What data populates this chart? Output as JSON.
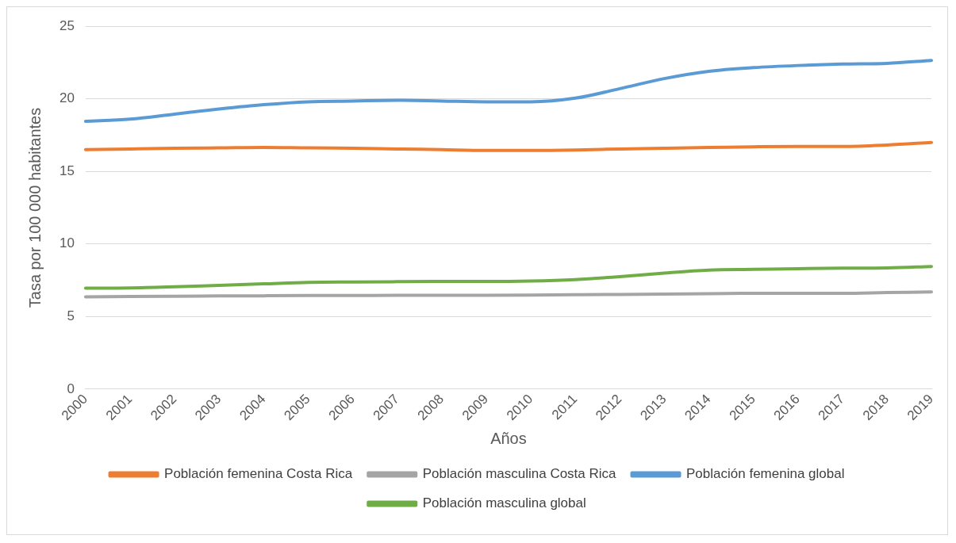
{
  "chart_data": {
    "type": "line",
    "xlabel": "Años",
    "ylabel": "Tasa por 100 000 habitantes",
    "categories": [
      "2000",
      "2001",
      "2002",
      "2003",
      "2004",
      "2005",
      "2006",
      "2007",
      "2008",
      "2009",
      "2010",
      "2011",
      "2012",
      "2013",
      "2014",
      "2015",
      "2016",
      "2017",
      "2018",
      "2019"
    ],
    "series": [
      {
        "name": "Población femenina Costa Rica",
        "color": "#ed7d31",
        "values": [
          16.5,
          16.55,
          16.6,
          16.62,
          16.65,
          16.62,
          16.6,
          16.55,
          16.5,
          16.45,
          16.45,
          16.48,
          16.55,
          16.6,
          16.65,
          16.7,
          16.72,
          16.72,
          16.82,
          17.0
        ]
      },
      {
        "name": "Población masculina Costa Rica",
        "color": "#a5a5a5",
        "values": [
          6.35,
          6.38,
          6.4,
          6.42,
          6.43,
          6.45,
          6.45,
          6.47,
          6.47,
          6.47,
          6.48,
          6.5,
          6.52,
          6.55,
          6.58,
          6.6,
          6.6,
          6.6,
          6.65,
          6.7
        ]
      },
      {
        "name": "Población femenina global",
        "color": "#5b9bd5",
        "values": [
          18.46,
          18.6,
          18.95,
          19.3,
          19.6,
          19.8,
          19.85,
          19.9,
          19.85,
          19.8,
          19.8,
          20.05,
          20.7,
          21.4,
          21.9,
          22.15,
          22.3,
          22.4,
          22.45,
          22.65
        ]
      },
      {
        "name": "Población masculina global",
        "color": "#70ad47",
        "values": [
          6.95,
          6.97,
          7.05,
          7.15,
          7.25,
          7.35,
          7.38,
          7.4,
          7.42,
          7.42,
          7.45,
          7.55,
          7.75,
          8.0,
          8.2,
          8.25,
          8.3,
          8.33,
          8.35,
          8.45
        ]
      }
    ],
    "ylim": [
      0,
      25
    ],
    "yticks": [
      0,
      5,
      10,
      15,
      20,
      25
    ],
    "grid": "y",
    "legend": "bottom",
    "marker": "none",
    "line_style": "solid"
  }
}
